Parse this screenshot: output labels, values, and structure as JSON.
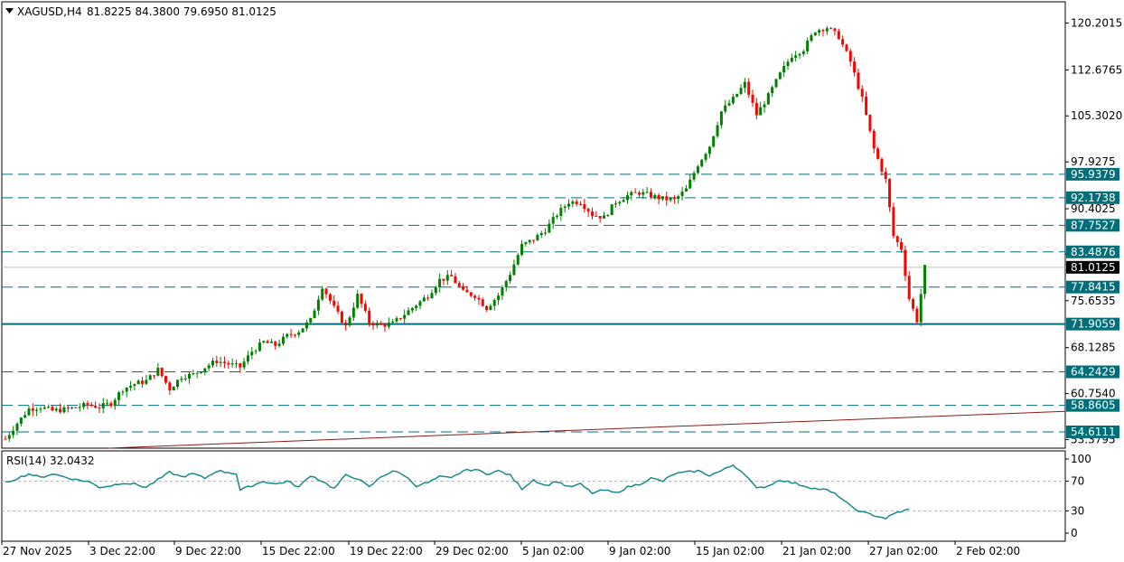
{
  "header": {
    "symbol": "XAGUSD,H4",
    "ohlc": "81.8225 84.3800 79.6950 81.0125"
  },
  "rsi_header": {
    "label": "RSI(14) 32.0432"
  },
  "colors": {
    "bull": "#008000",
    "bear": "#ff0000",
    "level_line": "#006f7a",
    "trendline": "#8b1a1a",
    "rsi_line": "#1a8a8a",
    "price_tag_bg": "#006f7a",
    "current_price_bg": "#000000"
  },
  "chart_data": [
    {
      "type": "candlestick",
      "symbol": "XAGUSD",
      "timeframe": "H4",
      "ylim": [
        52.0,
        123.6
      ],
      "y_ticks": [
        "120.2015",
        "112.6765",
        "105.3020",
        "97.9275",
        "90.4025",
        "83.1030",
        "75.6535",
        "68.1285",
        "60.7540",
        "53.3795"
      ],
      "x_labels": [
        "27 Nov 2025",
        "3 Dec 22:00",
        "9 Dec 22:00",
        "15 Dec 22:00",
        "19 Dec 22:00",
        "29 Dec 02:00",
        "5 Jan 02:00",
        "9 Jan 02:00",
        "15 Jan 02:00",
        "21 Jan 02:00",
        "27 Jan 02:00",
        "2 Feb 02:00"
      ],
      "current_price": "81.0125",
      "horizontal_levels": [
        {
          "value": 95.9379,
          "label": "95.9379",
          "style": "dashed"
        },
        {
          "value": 92.1738,
          "label": "92.1738",
          "style": "dashed"
        },
        {
          "value": 87.7527,
          "label": "87.7527",
          "style": "dashed"
        },
        {
          "value": 83.4876,
          "label": "83.4876",
          "style": "dashed"
        },
        {
          "value": 77.8415,
          "label": "77.8415",
          "style": "dashed"
        },
        {
          "value": 71.9059,
          "label": "71.9059",
          "style": "solid"
        },
        {
          "value": 64.2429,
          "label": "64.2429",
          "style": "dashed"
        },
        {
          "value": 58.8605,
          "label": "58.8605",
          "style": "dashed"
        },
        {
          "value": 54.6111,
          "label": "54.6111",
          "style": "dashed"
        }
      ],
      "trendline": {
        "start": 52.0,
        "end": 57.9
      },
      "close_path": [
        [
          0,
          53.5
        ],
        [
          3,
          56.0
        ],
        [
          6,
          58.3
        ],
        [
          9,
          58.6
        ],
        [
          12,
          58.0
        ],
        [
          15,
          58.2
        ],
        [
          18,
          58.5
        ],
        [
          21,
          59.0
        ],
        [
          24,
          58.6
        ],
        [
          27,
          59.2
        ],
        [
          30,
          61.5
        ],
        [
          33,
          62.3
        ],
        [
          36,
          62.8
        ],
        [
          39,
          64.6
        ],
        [
          42,
          61.5
        ],
        [
          45,
          63.5
        ],
        [
          48,
          63.8
        ],
        [
          51,
          65.0
        ],
        [
          54,
          66.0
        ],
        [
          57,
          65.5
        ],
        [
          60,
          65.0
        ],
        [
          63,
          67.5
        ],
        [
          66,
          69.0
        ],
        [
          69,
          68.5
        ],
        [
          72,
          70.0
        ],
        [
          75,
          70.8
        ],
        [
          78,
          72.5
        ],
        [
          81,
          78.0
        ],
        [
          84,
          74.5
        ],
        [
          87,
          71.5
        ],
        [
          90,
          76.5
        ],
        [
          93,
          72.2
        ],
        [
          96,
          71.7
        ],
        [
          99,
          72.0
        ],
        [
          102,
          73.5
        ],
        [
          105,
          75.0
        ],
        [
          108,
          76.5
        ],
        [
          111,
          79.0
        ],
        [
          114,
          79.5
        ],
        [
          117,
          77.0
        ],
        [
          120,
          76.5
        ],
        [
          123,
          74.5
        ],
        [
          126,
          76.5
        ],
        [
          129,
          80.0
        ],
        [
          132,
          84.5
        ],
        [
          135,
          85.5
        ],
        [
          138,
          87.0
        ],
        [
          141,
          89.5
        ],
        [
          144,
          91.5
        ],
        [
          147,
          91.5
        ],
        [
          150,
          89.5
        ],
        [
          153,
          89.0
        ],
        [
          156,
          91.5
        ],
        [
          159,
          92.5
        ],
        [
          162,
          93.0
        ],
        [
          165,
          92.5
        ],
        [
          168,
          92.0
        ],
        [
          171,
          91.8
        ],
        [
          174,
          93.5
        ],
        [
          177,
          97.5
        ],
        [
          180,
          100.5
        ],
        [
          183,
          106.0
        ],
        [
          186,
          108.0
        ],
        [
          189,
          110.5
        ],
        [
          192,
          105.5
        ],
        [
          195,
          108.5
        ],
        [
          198,
          112.0
        ],
        [
          201,
          115.0
        ],
        [
          204,
          116.0
        ],
        [
          207,
          119.0
        ],
        [
          210,
          119.5
        ],
        [
          213,
          118.0
        ],
        [
          216,
          114.0
        ],
        [
          219,
          108.0
        ],
        [
          222,
          100.0
        ],
        [
          225,
          95.0
        ],
        [
          227,
          86.0
        ],
        [
          229,
          84.0
        ],
        [
          231,
          76.0
        ],
        [
          233,
          72.5
        ],
        [
          235,
          81.0
        ]
      ],
      "rsi": {
        "label": "RSI(14) 32.0432",
        "value": 32.0432,
        "levels": [
          70,
          30
        ],
        "axis_labels": [
          "100",
          "70",
          "30",
          "0"
        ],
        "ylim": [
          0,
          100
        ],
        "path": [
          [
            0,
            68
          ],
          [
            6,
            80
          ],
          [
            9,
            75
          ],
          [
            12,
            80
          ],
          [
            15,
            76
          ],
          [
            18,
            72
          ],
          [
            21,
            70
          ],
          [
            24,
            62
          ],
          [
            27,
            64
          ],
          [
            30,
            68
          ],
          [
            33,
            66
          ],
          [
            36,
            62
          ],
          [
            39,
            72
          ],
          [
            42,
            82
          ],
          [
            45,
            76
          ],
          [
            48,
            80
          ],
          [
            51,
            74
          ],
          [
            54,
            84
          ],
          [
            57,
            82
          ],
          [
            59,
            80
          ],
          [
            60,
            58
          ],
          [
            63,
            64
          ],
          [
            66,
            70
          ],
          [
            69,
            66
          ],
          [
            72,
            70
          ],
          [
            75,
            62
          ],
          [
            78,
            78
          ],
          [
            81,
            70
          ],
          [
            84,
            60
          ],
          [
            87,
            78
          ],
          [
            90,
            74
          ],
          [
            93,
            62
          ],
          [
            96,
            76
          ],
          [
            99,
            84
          ],
          [
            102,
            78
          ],
          [
            105,
            64
          ],
          [
            108,
            68
          ],
          [
            111,
            76
          ],
          [
            114,
            74
          ],
          [
            117,
            84
          ],
          [
            120,
            86
          ],
          [
            123,
            80
          ],
          [
            126,
            84
          ],
          [
            129,
            78
          ],
          [
            132,
            60
          ],
          [
            135,
            72
          ],
          [
            138,
            64
          ],
          [
            141,
            70
          ],
          [
            144,
            62
          ],
          [
            147,
            66
          ],
          [
            150,
            54
          ],
          [
            153,
            58
          ],
          [
            156,
            54
          ],
          [
            159,
            62
          ],
          [
            162,
            66
          ],
          [
            165,
            74
          ],
          [
            168,
            70
          ],
          [
            171,
            80
          ],
          [
            174,
            82
          ],
          [
            177,
            84
          ],
          [
            180,
            78
          ],
          [
            183,
            84
          ],
          [
            186,
            92
          ],
          [
            189,
            80
          ],
          [
            192,
            60
          ],
          [
            195,
            64
          ],
          [
            198,
            72
          ],
          [
            201,
            68
          ],
          [
            204,
            64
          ],
          [
            207,
            60
          ],
          [
            210,
            58
          ],
          [
            213,
            50
          ],
          [
            216,
            36
          ],
          [
            219,
            28
          ],
          [
            222,
            24
          ],
          [
            225,
            20
          ],
          [
            228,
            28
          ],
          [
            231,
            32
          ]
        ]
      }
    }
  ]
}
